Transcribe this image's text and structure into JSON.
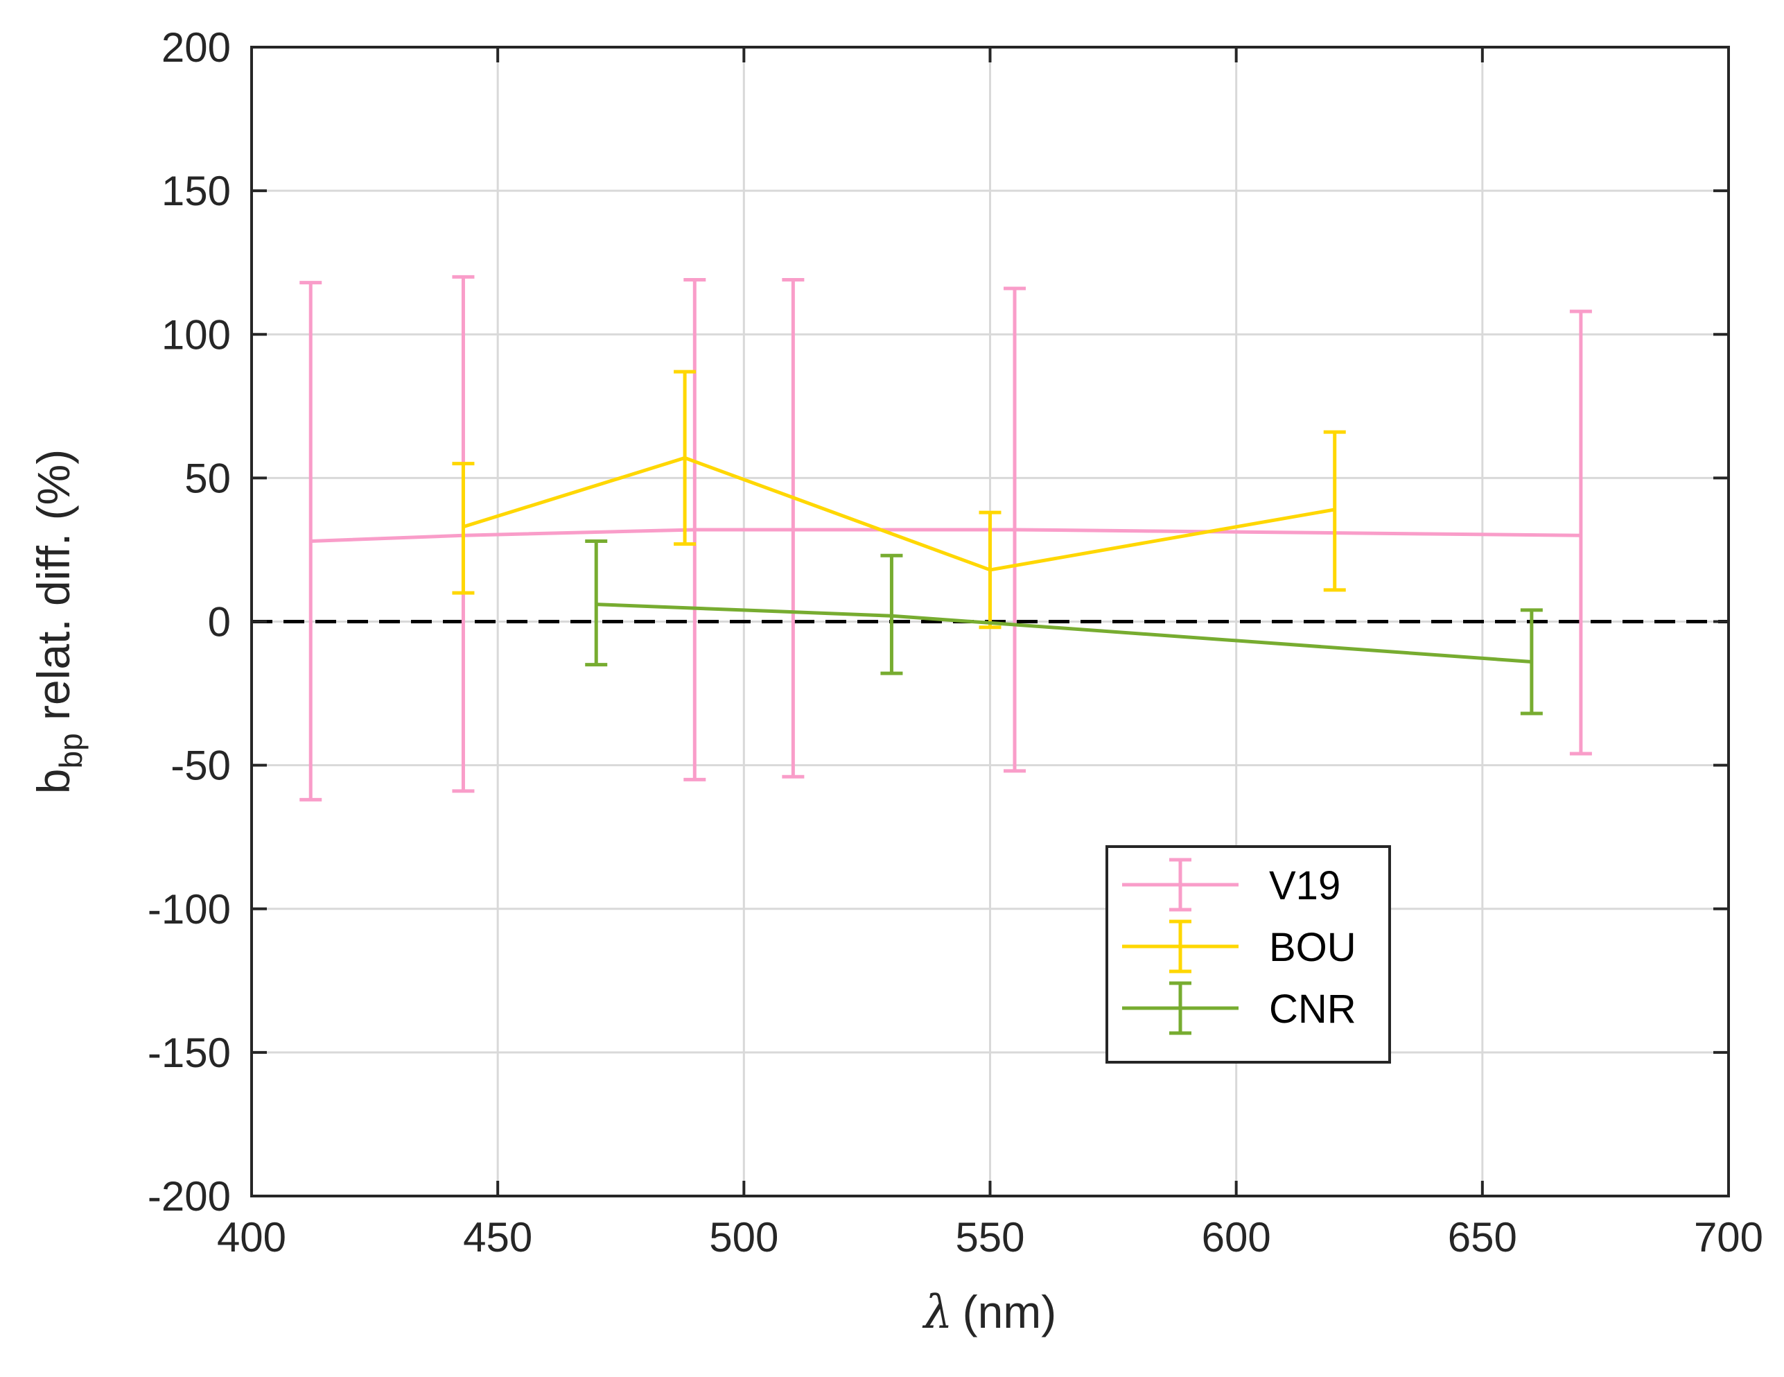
{
  "chart_data": {
    "type": "line",
    "title": "",
    "xlabel": "(nm)",
    "xlabel_symbol": "λ",
    "ylabel": {
      "main": "b",
      "subscript": "bp",
      "rest": " relat. diff. (%)"
    },
    "xlim": [
      400,
      700
    ],
    "ylim": [
      -200,
      200
    ],
    "xticks": [
      400,
      450,
      500,
      550,
      600,
      650,
      700
    ],
    "yticks": [
      -200,
      -150,
      -100,
      -50,
      0,
      50,
      100,
      150,
      200
    ],
    "grid": true,
    "reference_line": {
      "y": 0,
      "style": "dashed",
      "color": "#000000"
    },
    "legend_position": "lower-right-inside",
    "series": [
      {
        "name": "V19",
        "color": "#f99dc9",
        "points": [
          {
            "x": 412,
            "y": 28,
            "lo": -62,
            "hi": 118
          },
          {
            "x": 443,
            "y": 30,
            "lo": -59,
            "hi": 120
          },
          {
            "x": 490,
            "y": 32,
            "lo": -55,
            "hi": 119
          },
          {
            "x": 510,
            "y": 32,
            "lo": -54,
            "hi": 119
          },
          {
            "x": 555,
            "y": 32,
            "lo": -52,
            "hi": 116
          },
          {
            "x": 670,
            "y": 30,
            "lo": -46,
            "hi": 108
          }
        ]
      },
      {
        "name": "BOU",
        "color": "#ffd700",
        "points": [
          {
            "x": 443,
            "y": 33,
            "lo": 10,
            "hi": 55
          },
          {
            "x": 488,
            "y": 57,
            "lo": 27,
            "hi": 87
          },
          {
            "x": 550,
            "y": 18,
            "lo": -2,
            "hi": 38
          },
          {
            "x": 620,
            "y": 39,
            "lo": 11,
            "hi": 66
          }
        ]
      },
      {
        "name": "CNR",
        "color": "#77ac30",
        "points": [
          {
            "x": 470,
            "y": 6,
            "lo": -15,
            "hi": 28
          },
          {
            "x": 530,
            "y": 2,
            "lo": -18,
            "hi": 23
          },
          {
            "x": 660,
            "y": -14,
            "lo": -32,
            "hi": 4
          }
        ]
      }
    ]
  }
}
